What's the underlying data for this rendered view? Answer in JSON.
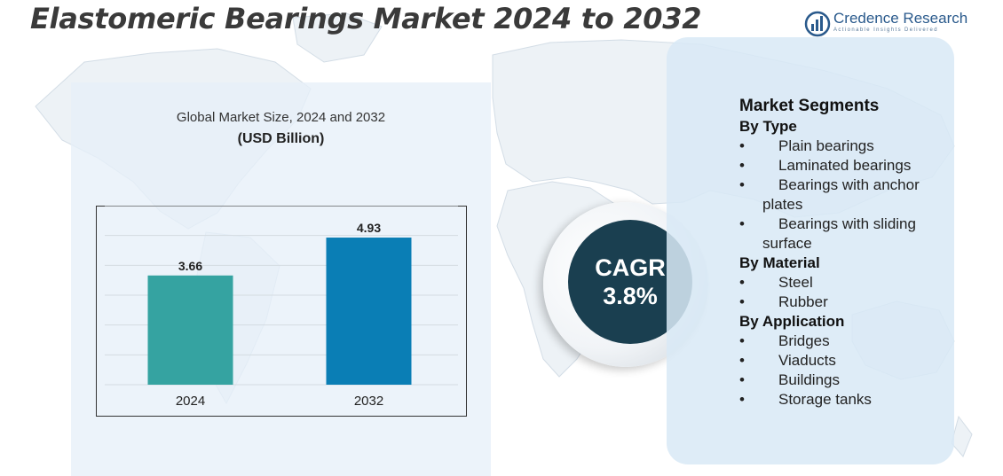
{
  "title": "Elastomeric Bearings  Market 2024 to 2032",
  "logo": {
    "name": "Credence Research",
    "tagline": "Actionable Insights Delivered"
  },
  "chart_data": {
    "type": "bar",
    "title": "Global Market Size, 2024 and 2032",
    "ylabel": "(USD Billion)",
    "categories": [
      "2024",
      "2032"
    ],
    "values": [
      3.66,
      4.93
    ],
    "data_labels": [
      "3.66",
      "4.93"
    ],
    "colors": [
      "#35a3a1",
      "#0a7eb5"
    ],
    "ylim": [
      0,
      6
    ],
    "grid": true
  },
  "cagr": {
    "label": "CAGR",
    "value": "3.8%"
  },
  "segments": {
    "title": "Market Segments",
    "groups": [
      {
        "title": "By Type",
        "items": [
          "Plain bearings",
          "Laminated bearings",
          "Bearings with anchor plates",
          "Bearings with sliding surface"
        ]
      },
      {
        "title": "By Material",
        "items": [
          "Steel",
          "Rubber"
        ]
      },
      {
        "title": "By Application",
        "items": [
          "Bridges",
          "Viaducts",
          "Buildings",
          "Storage tanks"
        ]
      }
    ]
  },
  "colors": {
    "cagr_circle": "#1a3f50",
    "segments_panel": "#d8e9f6",
    "chart_panel": "#e7f0f8",
    "logo": "#2a5a8c"
  }
}
